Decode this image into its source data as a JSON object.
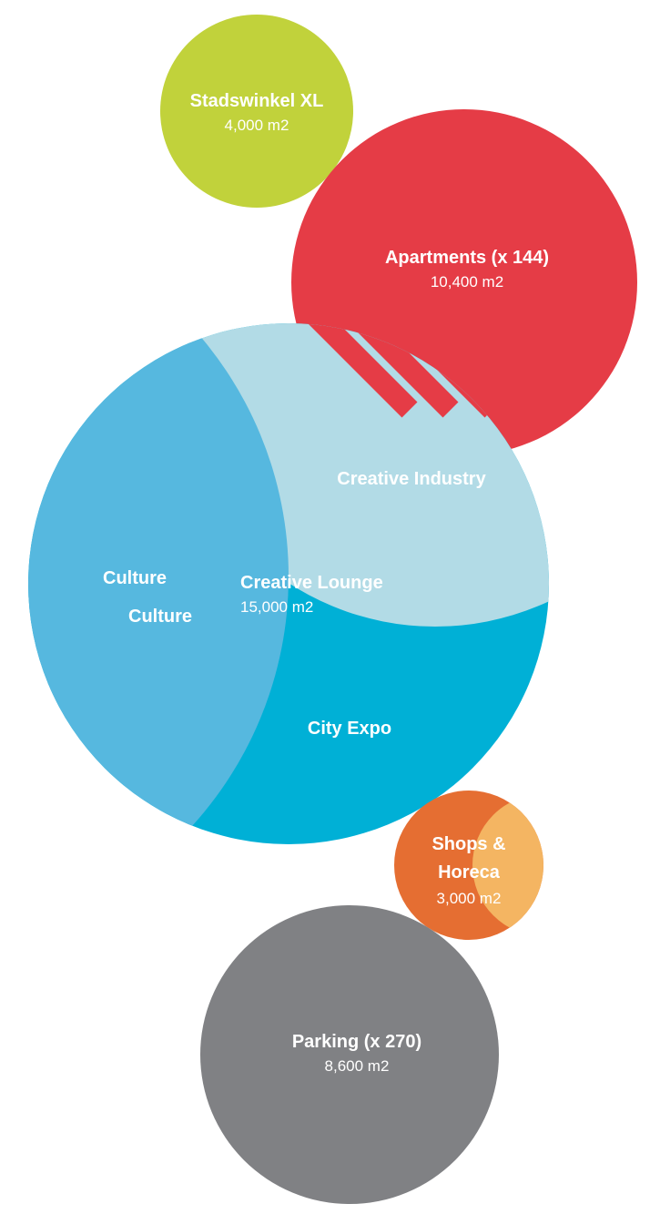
{
  "colors": {
    "stadswinkel": "#c1d23b",
    "apartments": "#e53c46",
    "culture": "#56b8df",
    "creative_industry": "#b2dbe6",
    "city_expo": "#00b0d6",
    "shops_dark": "#e56e32",
    "shops_light": "#f4b562",
    "parking": "#808184",
    "text": "#ffffff"
  },
  "stadswinkel": {
    "name": "Stadswinkel XL",
    "area": "4,000 m2"
  },
  "apartments": {
    "name": "Apartments (x 144)",
    "area": "10,400 m2"
  },
  "creative_industry": {
    "name": "Creative Industry"
  },
  "culture": {
    "label_1": "Culture",
    "label_2": "Culture"
  },
  "creative_lounge": {
    "name": "Creative Lounge",
    "area": "15,000 m2"
  },
  "city_expo": {
    "name": "City Expo"
  },
  "shops": {
    "name_line1": "Shops &",
    "name_line2": "Horeca",
    "area": "3,000 m2"
  },
  "parking": {
    "name": "Parking (x 270)",
    "area": "8,600 m2"
  }
}
